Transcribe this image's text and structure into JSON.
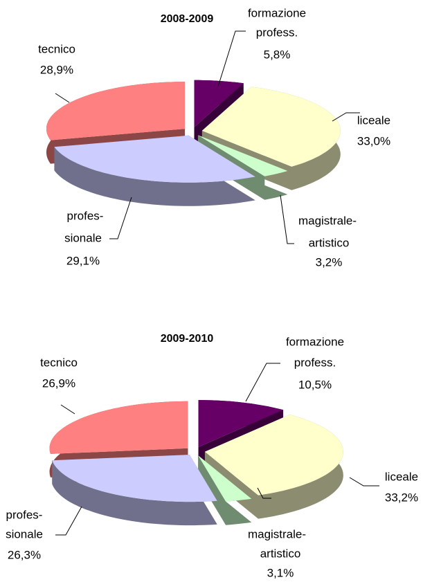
{
  "chart_data": [
    {
      "type": "pie",
      "title": "2008-2009",
      "categories": [
        [
          "formazione",
          "profess."
        ],
        [
          "liceale"
        ],
        [
          "magistrale-",
          "artistico"
        ],
        [
          "profes-",
          "sionale"
        ],
        [
          "tecnico"
        ]
      ],
      "values": [
        5.8,
        33.0,
        3.2,
        29.1,
        28.9
      ],
      "value_labels": [
        "5,8%",
        "33,0%",
        "3,2%",
        "29,1%",
        "28,9%"
      ],
      "colors": [
        "#660066",
        "#ffffcc",
        "#ccffcc",
        "#ccccff",
        "#ff8080"
      ]
    },
    {
      "type": "pie",
      "title": "2009-2010",
      "categories": [
        [
          "formazione",
          "profess."
        ],
        [
          "liceale"
        ],
        [
          "magistrale-",
          "artistico"
        ],
        [
          "profes-",
          "sionale"
        ],
        [
          "tecnico"
        ]
      ],
      "values": [
        10.5,
        33.2,
        3.1,
        26.3,
        26.9
      ],
      "value_labels": [
        "10,5%",
        "33,2%",
        "3,1%",
        "26,3%",
        "26,9%"
      ],
      "colors": [
        "#660066",
        "#ffffcc",
        "#ccffcc",
        "#ccccff",
        "#ff8080"
      ]
    }
  ]
}
